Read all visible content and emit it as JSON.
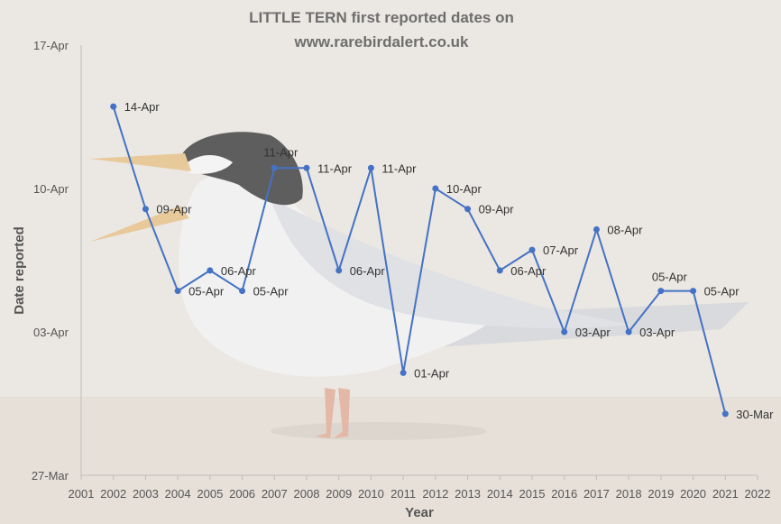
{
  "chart_data": {
    "type": "line",
    "title_lines": [
      "LITTLE TERN first reported dates on",
      "www.rarebirdalert.co.uk"
    ],
    "xlabel": "Year",
    "ylabel": "Date reported",
    "x_ticks": [
      "2001",
      "2002",
      "2003",
      "2004",
      "2005",
      "2006",
      "2007",
      "2008",
      "2009",
      "2010",
      "2011",
      "2012",
      "2013",
      "2014",
      "2015",
      "2016",
      "2017",
      "2018",
      "2019",
      "2020",
      "2021",
      "2022"
    ],
    "y_ticks": [
      "27-Mar",
      "03-Apr",
      "10-Apr",
      "17-Apr"
    ],
    "xlim": [
      2001,
      2022
    ],
    "ylim": [
      "27-Mar",
      "17-Apr"
    ],
    "grid": false,
    "series_color": "#4472c4",
    "series": [
      {
        "x": [
          2002,
          2003,
          2004,
          2005,
          2006,
          2007,
          2008,
          2009,
          2010,
          2011,
          2012,
          2013,
          2014,
          2015,
          2016,
          2017,
          2018,
          2019,
          2020,
          2021
        ],
        "values": [
          "14-Apr",
          "09-Apr",
          "05-Apr",
          "06-Apr",
          "05-Apr",
          "11-Apr",
          "11-Apr",
          "06-Apr",
          "11-Apr",
          "01-Apr",
          "10-Apr",
          "09-Apr",
          "06-Apr",
          "07-Apr",
          "03-Apr",
          "08-Apr",
          "03-Apr",
          "05-Apr",
          "05-Apr",
          "30-Mar"
        ],
        "labels": [
          "14-Apr",
          "09-Apr",
          "05-Apr",
          "06-Apr",
          "05-Apr",
          "11-Apr",
          "11-Apr",
          "06-Apr",
          "11-Apr",
          "01-Apr",
          "10-Apr",
          "09-Apr",
          "06-Apr",
          "07-Apr",
          "03-Apr",
          "08-Apr",
          "03-Apr",
          "05-Apr",
          "05-Apr",
          "30-Mar"
        ]
      }
    ]
  }
}
